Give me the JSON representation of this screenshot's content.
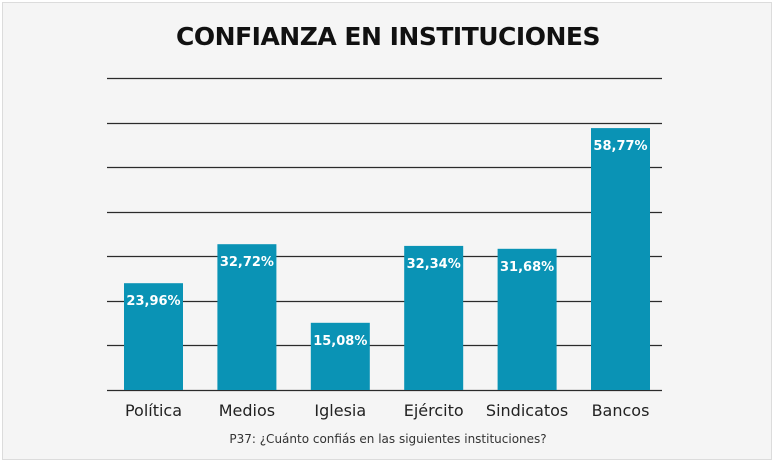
{
  "chart_data": {
    "type": "bar",
    "title": "CONFIANZA EN INSTITUCIONES",
    "xlabel": "P37: ¿Cuánto confiás en las siguientes instituciones?",
    "ylabel": "",
    "categories": [
      "Política",
      "Medios",
      "Iglesia",
      "Ejército",
      "Sindicatos",
      "Bancos"
    ],
    "values": [
      23.96,
      32.72,
      15.08,
      32.34,
      31.68,
      58.77
    ],
    "value_labels": [
      "23,96%",
      "32,72%",
      "15,08%",
      "32,34%",
      "31,68%",
      "58,77%"
    ],
    "ylim": [
      0,
      70
    ],
    "gridlines": [
      0,
      10,
      20,
      30,
      40,
      50,
      60,
      70
    ],
    "grid": true,
    "bar_color": "#0a93b5",
    "background_color": "#f5f5f5"
  }
}
